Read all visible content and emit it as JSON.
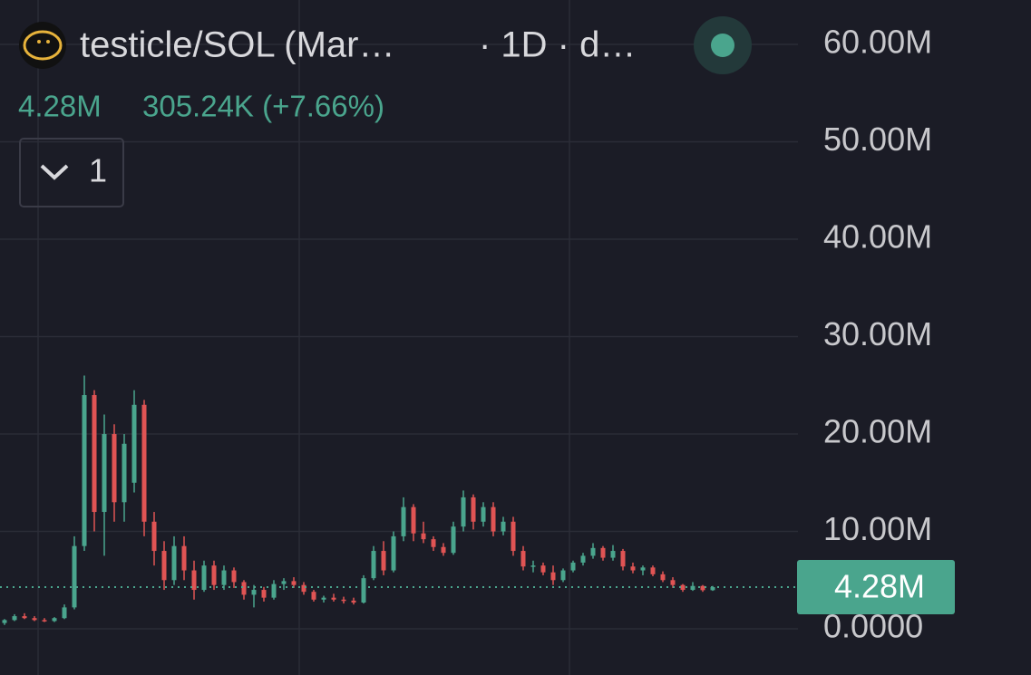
{
  "chart_data": {
    "type": "candlestick",
    "title": "testicle/SOL (Mar…",
    "interval": "· 1D · d…",
    "last_price": {
      "value": 4280000,
      "label": "4.28M"
    },
    "change": "305.24K (+7.66%)",
    "indicator_count": 1,
    "up_color": "#4aa58d",
    "down_color": "#e05454",
    "ylim": [
      -4740000,
      64560000
    ],
    "yticks": [
      {
        "value": 0,
        "label": "0.0000"
      },
      {
        "value": 10000000,
        "label": "10.00M"
      },
      {
        "value": 20000000,
        "label": "20.00M"
      },
      {
        "value": 30000000,
        "label": "30.00M"
      },
      {
        "value": 40000000,
        "label": "40.00M"
      },
      {
        "value": 50000000,
        "label": "50.00M"
      },
      {
        "value": 60000000,
        "label": "60.00M"
      }
    ],
    "grid": true,
    "open": [
      600000,
      900000,
      1300000,
      1100000,
      900000,
      800000,
      1100000,
      2200000,
      8500000,
      24000000,
      12000000,
      20000000,
      13000000,
      15000000,
      23000000,
      11000000,
      8000000,
      5000000,
      8500000,
      6000000,
      4000000,
      6500000,
      4500000,
      6000000,
      4800000,
      3500000,
      4000000,
      3200000,
      4600000,
      4900000,
      4500000,
      3800000,
      3000000,
      3200000,
      3000000,
      2900000,
      2700000,
      5200000,
      8000000,
      6000000,
      9500000,
      12500000,
      9800000,
      9200000,
      8400000,
      7800000,
      10500000,
      13500000,
      11000000,
      12500000,
      10000000,
      11000000,
      8000000,
      6400000,
      6500000,
      5800000,
      5000000,
      6000000,
      6800000,
      7500000,
      8300000,
      7300000,
      8000000,
      6400000,
      6000000,
      6300000,
      5600000,
      5000000,
      4500000,
      4000000,
      4400000,
      3970000
    ],
    "high": [
      1000000,
      1500000,
      1600000,
      1300000,
      1100000,
      1200000,
      2500000,
      9500000,
      26000000,
      24500000,
      22000000,
      21000000,
      20000000,
      24500000,
      23500000,
      12000000,
      9000000,
      9500000,
      9500000,
      7000000,
      7000000,
      7000000,
      6500000,
      6300000,
      5000000,
      4500000,
      4300000,
      5000000,
      5200000,
      5300000,
      4800000,
      4000000,
      3400000,
      3600000,
      3300000,
      3200000,
      5500000,
      8500000,
      9000000,
      10000000,
      13500000,
      12800000,
      11000000,
      9500000,
      8800000,
      11000000,
      14200000,
      13800000,
      13000000,
      13000000,
      11500000,
      11500000,
      8500000,
      7000000,
      6800000,
      6500000,
      6200000,
      7000000,
      7800000,
      8800000,
      8500000,
      8600000,
      8200000,
      6800000,
      6500000,
      6500000,
      5900000,
      5300000,
      4600000,
      4800000,
      4500000,
      4400000
    ],
    "low": [
      400000,
      800000,
      1000000,
      800000,
      700000,
      700000,
      1000000,
      2000000,
      8000000,
      10000000,
      7500000,
      11000000,
      11000000,
      14000000,
      9500000,
      6500000,
      4000000,
      4500000,
      5000000,
      3000000,
      3800000,
      4000000,
      4000000,
      4200000,
      3000000,
      2200000,
      2800000,
      3000000,
      4000000,
      4200000,
      3500000,
      2800000,
      2700000,
      2800000,
      2600000,
      2500000,
      2600000,
      5000000,
      5500000,
      5800000,
      9000000,
      9000000,
      8800000,
      8000000,
      7500000,
      7600000,
      10000000,
      10200000,
      10500000,
      9500000,
      9600000,
      7500000,
      6000000,
      5800000,
      5500000,
      4500000,
      4800000,
      5800000,
      6500000,
      7200000,
      7000000,
      7000000,
      6000000,
      5700000,
      5500000,
      5400000,
      4800000,
      4200000,
      3800000,
      3900000,
      3800000,
      3900000
    ],
    "close": [
      900000,
      1300000,
      1100000,
      900000,
      800000,
      1100000,
      2200000,
      8500000,
      24000000,
      12000000,
      20000000,
      13000000,
      19000000,
      23000000,
      11000000,
      8000000,
      5000000,
      8500000,
      6000000,
      4000000,
      6500000,
      4500000,
      6000000,
      4800000,
      3500000,
      4000000,
      3200000,
      4600000,
      4900000,
      4500000,
      3800000,
      3000000,
      3200000,
      3000000,
      2900000,
      2700000,
      5200000,
      8000000,
      6000000,
      9500000,
      12500000,
      9800000,
      9200000,
      8400000,
      7800000,
      10500000,
      13500000,
      11000000,
      12500000,
      10000000,
      11000000,
      8000000,
      6400000,
      6500000,
      5800000,
      5000000,
      6000000,
      6800000,
      7500000,
      8300000,
      7300000,
      8000000,
      6400000,
      6000000,
      6300000,
      5600000,
      5000000,
      4500000,
      4000000,
      4400000,
      3970000,
      4280000
    ]
  }
}
